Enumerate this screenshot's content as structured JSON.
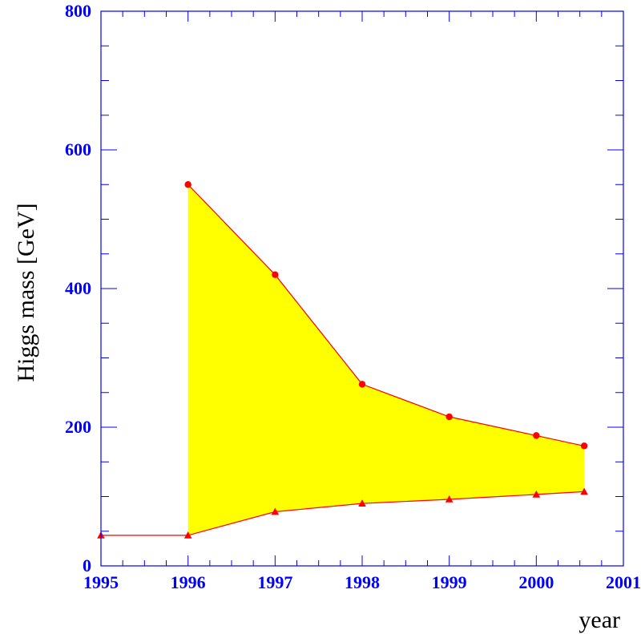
{
  "chart_data": {
    "type": "area",
    "title": "",
    "xlabel": "year",
    "ylabel": "Higgs mass [GeV]",
    "xlim": [
      1995,
      2001
    ],
    "ylim": [
      0,
      800
    ],
    "x_ticks": [
      "1995",
      "1996",
      "1997",
      "1998",
      "1999",
      "2000",
      "2001"
    ],
    "y_ticks": [
      "0",
      "200",
      "400",
      "600",
      "800"
    ],
    "band_color": "#ffff00",
    "line_color": "#ff0000",
    "frame_color": "#0000ff",
    "series": [
      {
        "marker": "circle",
        "x": [
          1996,
          1997,
          1998,
          1999,
          2000,
          2000.55
        ],
        "y": [
          550,
          420,
          262,
          215,
          188,
          173
        ]
      },
      {
        "marker": "triangle",
        "x": [
          1995,
          1996,
          1997,
          1998,
          1999,
          2000,
          2000.55
        ],
        "y": [
          44,
          44,
          78,
          90,
          96,
          103,
          107
        ]
      }
    ],
    "band": {
      "x_start": 1996,
      "x_end": 2000.55
    }
  }
}
